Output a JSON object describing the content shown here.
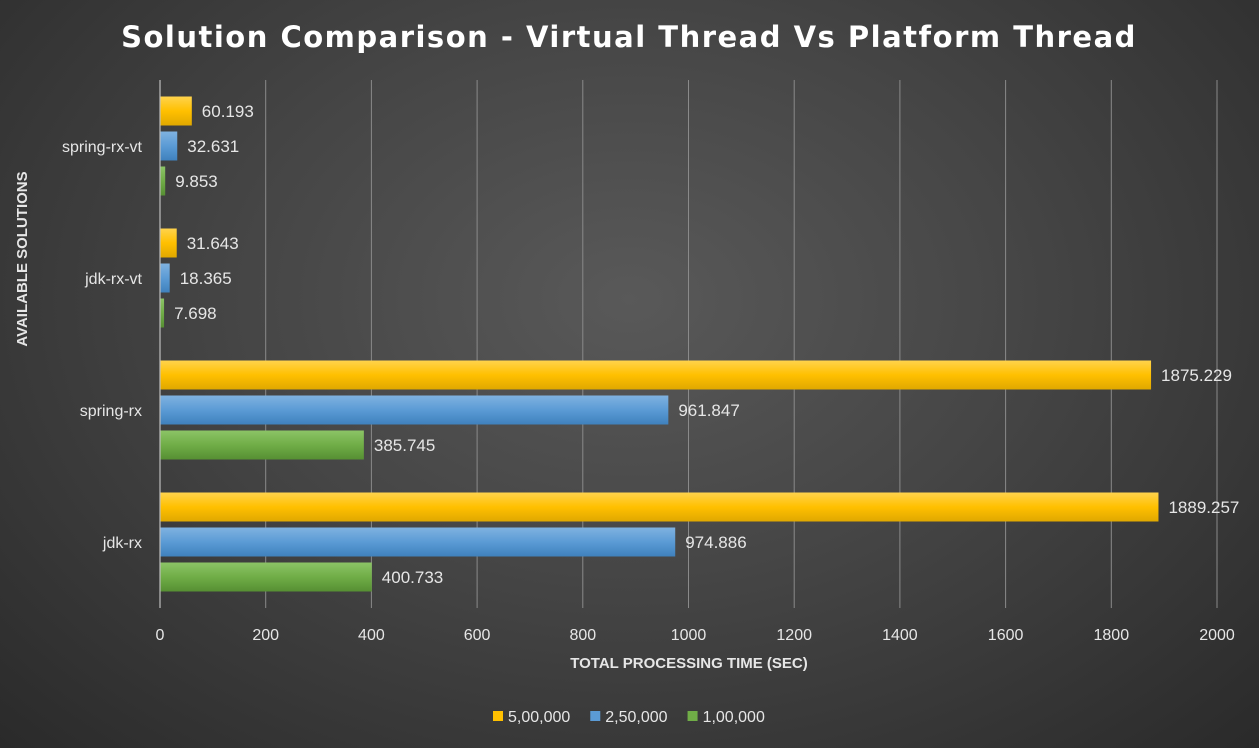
{
  "chart_data": {
    "type": "bar",
    "orientation": "horizontal",
    "title": "Solution Comparison - Virtual Thread Vs Platform Thread",
    "xlabel": "TOTAL PROCESSING TIME (SEC)",
    "ylabel": "AVAILABLE SOLUTIONS",
    "xlim": [
      0,
      2000
    ],
    "xticks": [
      "0",
      "200",
      "400",
      "600",
      "800",
      "1000",
      "1200",
      "1400",
      "1600",
      "1800",
      "2000"
    ],
    "grid": true,
    "legend_position": "bottom",
    "categories": [
      "spring-rx-vt",
      "jdk-rx-vt",
      "spring-rx",
      "jdk-rx"
    ],
    "series": [
      {
        "name": "5,00,000",
        "color": "#ffc000",
        "values": [
          60.193,
          31.643,
          1875.229,
          1889.257
        ]
      },
      {
        "name": "2,50,000",
        "color": "#5b9bd5",
        "values": [
          32.631,
          18.365,
          961.847,
          974.886
        ]
      },
      {
        "name": "1,00,000",
        "color": "#70ad47",
        "values": [
          9.853,
          7.698,
          385.745,
          400.733
        ]
      }
    ]
  }
}
